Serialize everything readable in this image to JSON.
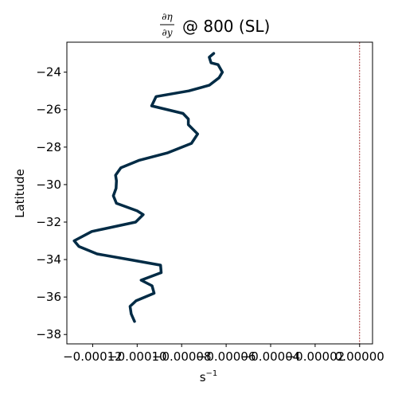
{
  "chart_data": {
    "type": "line",
    "title": {
      "numerator": "∂η",
      "denominator": "∂y",
      "rest": "@ 800 (SL)"
    },
    "xlabel": {
      "base": "s",
      "sup": "−1"
    },
    "ylabel": "Latitude",
    "xlim": [
      -0.0001316,
      5.8e-06
    ],
    "ylim": [
      -38.5,
      -22.4
    ],
    "x_tick_values": [
      -0.00012,
      -0.0001,
      -8e-05,
      -6e-05,
      -4e-05,
      -2e-05,
      0.0
    ],
    "x_tick_labels": [
      "−0.00012",
      "−0.00010",
      "−0.00008",
      "−0.00006",
      "−0.00004",
      "−0.00002",
      "0.00000"
    ],
    "y_tick_values": [
      -24,
      -26,
      -28,
      -30,
      -32,
      -34,
      -36,
      -38
    ],
    "y_tick_labels": [
      "−24",
      "−26",
      "−28",
      "−30",
      "−32",
      "−34",
      "−36",
      "−38"
    ],
    "reference_line_x": 0.0,
    "grid": false,
    "colors": {
      "line": "#002b45",
      "reference_line": "#8b0000",
      "axes": "#000000"
    },
    "series": [
      {
        "x": [
          -6.56e-05,
          -6.76e-05,
          -6.68e-05,
          -6.36e-05,
          -6.17e-05,
          -6.32e-05,
          -6.76e-05,
          -7.68e-05,
          -9.15e-05,
          -9.35e-05,
          -7.94e-05,
          -7.7e-05,
          -7.7e-05,
          -7.28e-05,
          -7.56e-05,
          -8.62e-05,
          -9.9e-05,
          -0.0001073,
          -0.0001097,
          -0.0001093,
          -0.0001095,
          -0.0001107,
          -0.0001093,
          -0.0001,
          -9.73e-05,
          -0.0001007,
          -0.0001204,
          -0.0001283,
          -0.0001262,
          -0.000118,
          -0.0001035,
          -8.95e-05,
          -8.92e-05,
          -9.82e-05,
          -9.33e-05,
          -9.24e-05,
          -0.0001005,
          -0.0001032,
          -0.0001027,
          -0.0001012
        ],
        "y": [
          -23.0,
          -23.2,
          -23.5,
          -23.6,
          -24.0,
          -24.3,
          -24.7,
          -25.0,
          -25.3,
          -25.8,
          -26.2,
          -26.5,
          -26.8,
          -27.3,
          -27.8,
          -28.3,
          -28.7,
          -29.1,
          -29.5,
          -29.8,
          -30.2,
          -30.6,
          -31.0,
          -31.4,
          -31.6,
          -32.0,
          -32.5,
          -33.0,
          -33.3,
          -33.7,
          -34.0,
          -34.3,
          -34.7,
          -35.1,
          -35.4,
          -35.8,
          -36.2,
          -36.5,
          -36.9,
          -37.3
        ]
      }
    ]
  }
}
